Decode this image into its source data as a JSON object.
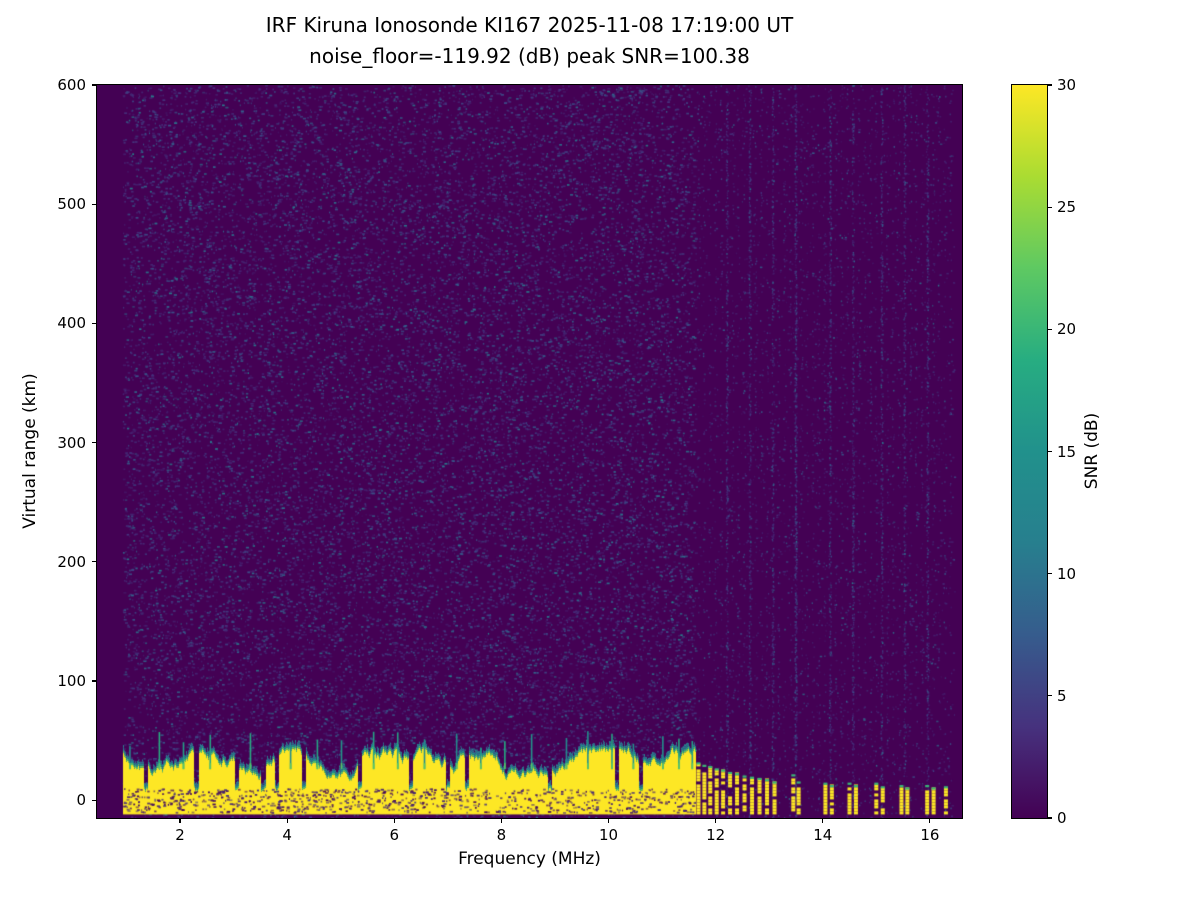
{
  "chart_data": {
    "type": "heatmap",
    "title": "IRF Kiruna Ionosonde KI167 2025-11-08 17:19:00  UT",
    "subtitle": "noise_floor=-119.92 (dB) peak SNR=100.38",
    "xlabel": "Frequency (MHz)",
    "ylabel": "Virtual range (km)",
    "xlim": [
      0.45,
      16.6
    ],
    "ylim": [
      -15,
      600
    ],
    "x_ticks": [
      2,
      4,
      6,
      8,
      10,
      12,
      14,
      16
    ],
    "y_ticks": [
      0,
      100,
      200,
      300,
      400,
      500,
      600
    ],
    "grid": false,
    "noise_floor_db": -119.92,
    "peak_snr_db": 100.38,
    "colorbar": {
      "label": "SNR (dB)",
      "vmin": 0,
      "vmax": 30,
      "ticks": [
        0,
        5,
        10,
        15,
        20,
        25,
        30
      ],
      "colormap": "viridis",
      "position": "right"
    },
    "colormap_stops": [
      {
        "pos": 0.0,
        "color": "#440154"
      },
      {
        "pos": 0.125,
        "color": "#46327e"
      },
      {
        "pos": 0.25,
        "color": "#365c8d"
      },
      {
        "pos": 0.375,
        "color": "#277f8e"
      },
      {
        "pos": 0.5,
        "color": "#21918c"
      },
      {
        "pos": 0.625,
        "color": "#27ad81"
      },
      {
        "pos": 0.75,
        "color": "#5ec962"
      },
      {
        "pos": 0.875,
        "color": "#aadc32"
      },
      {
        "pos": 1.0,
        "color": "#fde725"
      }
    ],
    "features": {
      "sweep_start_mhz": 0.93,
      "sweep_end_mhz": 16.45,
      "background_snr_db": 0,
      "speckle_noise_snr_db": [
        2,
        14
      ],
      "continuous_clutter_band": {
        "f_start_mhz": 0.93,
        "f_end_mhz": 11.62,
        "bottom_km": -12,
        "top_km_typical": 30,
        "top_km_range": [
          8,
          55
        ],
        "snr_db": 30
      },
      "band_notch_freqs_mhz": [
        1.35,
        2.3,
        3.05,
        3.55,
        3.8,
        4.3,
        5.35,
        6.3,
        7.0,
        7.35,
        8.9,
        10.15,
        10.6
      ],
      "band_spike_freqs_mhz": [
        1.05,
        1.6,
        2.05,
        2.55,
        3.3,
        4.05,
        4.55,
        5.0,
        5.6,
        6.05,
        6.55,
        7.15,
        7.6,
        8.05,
        8.55,
        9.2,
        9.6,
        10.05,
        10.45,
        11.0,
        11.3,
        11.55
      ],
      "discrete_stripes": [
        {
          "f": 11.68,
          "top_km": 30
        },
        {
          "f": 11.79,
          "top_km": 28
        },
        {
          "f": 11.9,
          "top_km": 27
        },
        {
          "f": 12.02,
          "top_km": 25
        },
        {
          "f": 12.14,
          "top_km": 24
        },
        {
          "f": 12.27,
          "top_km": 22
        },
        {
          "f": 12.4,
          "top_km": 21
        },
        {
          "f": 12.54,
          "top_km": 19
        },
        {
          "f": 12.68,
          "top_km": 18
        },
        {
          "f": 12.82,
          "top_km": 17
        },
        {
          "f": 12.96,
          "top_km": 16
        },
        {
          "f": 13.1,
          "top_km": 14
        },
        {
          "f": 13.45,
          "top_km": 20
        },
        {
          "f": 13.55,
          "top_km": 14
        },
        {
          "f": 14.05,
          "top_km": 13
        },
        {
          "f": 14.17,
          "top_km": 11
        },
        {
          "f": 14.5,
          "top_km": 13
        },
        {
          "f": 14.62,
          "top_km": 11
        },
        {
          "f": 15.0,
          "top_km": 13
        },
        {
          "f": 15.12,
          "top_km": 10
        },
        {
          "f": 15.47,
          "top_km": 11
        },
        {
          "f": 15.58,
          "top_km": 9
        },
        {
          "f": 15.95,
          "top_km": 11
        },
        {
          "f": 16.07,
          "top_km": 9
        },
        {
          "f": 16.3,
          "top_km": 10
        }
      ],
      "noise_column_spacing_mhz": 0.107,
      "prominent_noise_columns_mhz": [
        12.2,
        12.65,
        13.1,
        13.5,
        14.15,
        14.6,
        15.1,
        15.55,
        16.0
      ]
    }
  }
}
